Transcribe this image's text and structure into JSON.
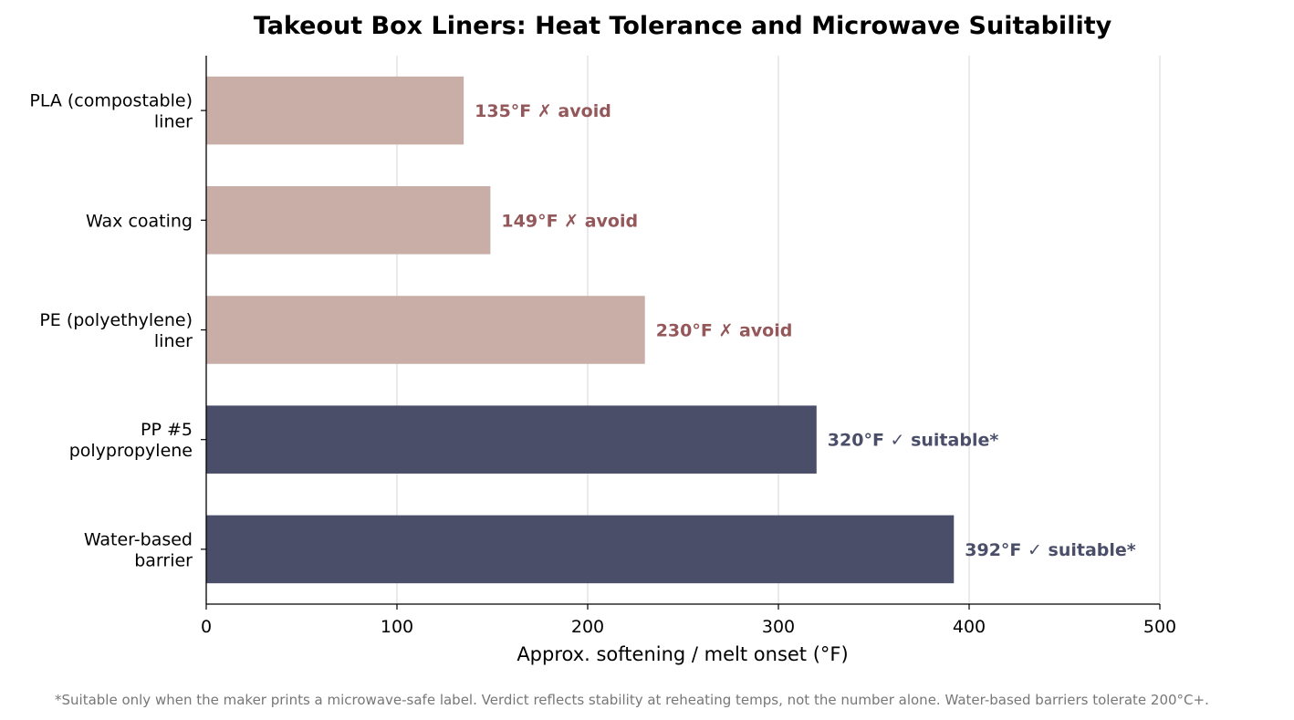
{
  "chart_data": {
    "type": "bar",
    "orientation": "horizontal",
    "title": "Takeout Box Liners: Heat Tolerance and Microwave Suitability",
    "xlabel": "Approx. softening / melt onset (°F)",
    "ylabel": "",
    "xlim": [
      0,
      500
    ],
    "xticks": [
      "0",
      "100",
      "200",
      "300",
      "400",
      "500"
    ],
    "grid": "vertical",
    "categories": [
      [
        "PLA (compostable)",
        "liner"
      ],
      [
        "Wax coating"
      ],
      [
        "PE (polyethylene)",
        "liner"
      ],
      [
        "PP #5",
        "polypropylene"
      ],
      [
        "Water-based",
        "barrier"
      ]
    ],
    "values": [
      135,
      149,
      230,
      320,
      392
    ],
    "verdicts": [
      "avoid",
      "avoid",
      "avoid",
      "suitable",
      "suitable"
    ],
    "bar_labels": [
      "135°F  ✗ avoid",
      "149°F  ✗ avoid",
      "230°F  ✗ avoid",
      "320°F  ✓ suitable*",
      "392°F  ✓ suitable*"
    ],
    "colors": {
      "avoid_bar": "#c8aea7",
      "avoid_text": "#94575a",
      "suitable_bar": "#4a4e69",
      "suitable_text": "#4a4e69",
      "grid": "#dddddd"
    },
    "footnote": "*Suitable only when the maker prints a microwave-safe label. Verdict reflects stability at reheating temps, not the number alone. Water-based barriers tolerate 200°C+."
  }
}
